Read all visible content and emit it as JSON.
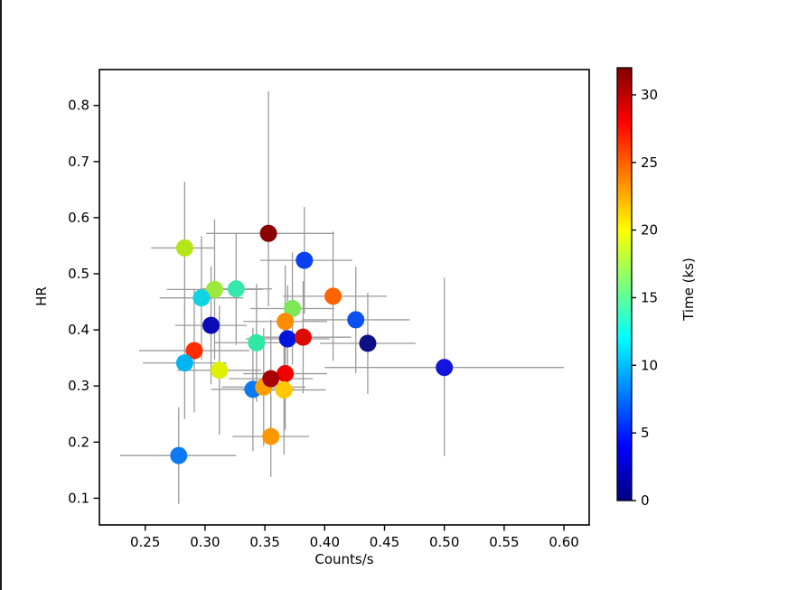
{
  "chart_data": {
    "type": "scatter",
    "title": "",
    "xlabel": "Counts/s",
    "ylabel": "HR",
    "xlim": [
      0.211,
      0.621
    ],
    "ylim": [
      0.052,
      0.864
    ],
    "grid": false,
    "xticks": [
      "0.25",
      "0.30",
      "0.35",
      "0.40",
      "0.45",
      "0.50",
      "0.55",
      "0.60"
    ],
    "xtick_values": [
      0.25,
      0.3,
      0.35,
      0.4,
      0.45,
      0.5,
      0.55,
      0.6
    ],
    "yticks": [
      "0.1",
      "0.2",
      "0.3",
      "0.4",
      "0.5",
      "0.6",
      "0.7",
      "0.8"
    ],
    "ytick_values": [
      0.1,
      0.2,
      0.3,
      0.4,
      0.5,
      0.6,
      0.7,
      0.8
    ],
    "colorbar": {
      "label": "Time (ks)",
      "min": 0,
      "max": 32,
      "ticks": [
        "0",
        "5",
        "10",
        "15",
        "20",
        "25",
        "30"
      ],
      "tick_values": [
        0,
        5,
        10,
        15,
        20,
        25,
        30
      ],
      "colormap": "jet",
      "gradient_stops": [
        {
          "offset": 0.0,
          "color": "#000080"
        },
        {
          "offset": 0.125,
          "color": "#0000ff"
        },
        {
          "offset": 0.375,
          "color": "#00ffff"
        },
        {
          "offset": 0.5,
          "color": "#7cff79"
        },
        {
          "offset": 0.625,
          "color": "#ffff00"
        },
        {
          "offset": 0.875,
          "color": "#ff0000"
        },
        {
          "offset": 1.0,
          "color": "#800000"
        }
      ]
    },
    "style": {
      "marker_color_source": "time",
      "marker_radius_px": 9.5,
      "errorbar_color": "#9b9b9b",
      "axes_color": "#000000",
      "background": "#ffffff"
    },
    "points": [
      {
        "x": 0.353,
        "y": 0.572,
        "time": 32,
        "color": "#8b0000",
        "ex": [
          0.052,
          0.055
        ],
        "ey": [
          0.13,
          0.253
        ]
      },
      {
        "x": 0.283,
        "y": 0.546,
        "time": 19,
        "color": "#b2e619",
        "ex": [
          0.028,
          0.025
        ],
        "ey": [
          0.12,
          0.118
        ]
      },
      {
        "x": 0.383,
        "y": 0.524,
        "time": 5,
        "color": "#0842f0",
        "ex": [
          0.037,
          0.04
        ],
        "ey": [
          0.095,
          0.095
        ]
      },
      {
        "x": 0.308,
        "y": 0.472,
        "time": 18,
        "color": "#9de83c",
        "ex": [
          0.04,
          0.04
        ],
        "ey": [
          0.125,
          0.125
        ]
      },
      {
        "x": 0.326,
        "y": 0.473,
        "time": 14,
        "color": "#35e8ad",
        "ex": [
          0.03,
          0.03
        ],
        "ey": [
          0.1,
          0.1
        ]
      },
      {
        "x": 0.297,
        "y": 0.457,
        "time": 11,
        "color": "#11d4e2",
        "ex": [
          0.035,
          0.035
        ],
        "ey": [
          0.11,
          0.11
        ]
      },
      {
        "x": 0.407,
        "y": 0.46,
        "time": 26,
        "color": "#ff6400",
        "ex": [
          0.042,
          0.045
        ],
        "ey": [
          0.115,
          0.115
        ]
      },
      {
        "x": 0.373,
        "y": 0.438,
        "time": 16,
        "color": "#7ce857",
        "ex": [
          0.035,
          0.035
        ],
        "ey": [
          0.1,
          0.1
        ]
      },
      {
        "x": 0.426,
        "y": 0.418,
        "time": 5,
        "color": "#0c50f0",
        "ex": [
          0.045,
          0.045
        ],
        "ey": [
          0.095,
          0.095
        ]
      },
      {
        "x": 0.305,
        "y": 0.408,
        "time": 2,
        "color": "#0a0ab8",
        "ex": [
          0.03,
          0.03
        ],
        "ey": [
          0.105,
          0.105
        ]
      },
      {
        "x": 0.367,
        "y": 0.415,
        "time": 24,
        "color": "#ff8c00",
        "ex": [
          0.035,
          0.035
        ],
        "ey": [
          0.1,
          0.1
        ]
      },
      {
        "x": 0.369,
        "y": 0.384,
        "time": 3,
        "color": "#0016dc",
        "ex": [
          0.035,
          0.035
        ],
        "ey": [
          0.095,
          0.095
        ]
      },
      {
        "x": 0.382,
        "y": 0.387,
        "time": 29,
        "color": "#dc0a00",
        "ex": [
          0.04,
          0.04
        ],
        "ey": [
          0.1,
          0.1
        ]
      },
      {
        "x": 0.343,
        "y": 0.377,
        "time": 13,
        "color": "#2ee8a4",
        "ex": [
          0.035,
          0.035
        ],
        "ey": [
          0.105,
          0.105
        ]
      },
      {
        "x": 0.291,
        "y": 0.363,
        "time": 27,
        "color": "#ff2d00",
        "ex": [
          0.046,
          0.046
        ],
        "ey": [
          0.11,
          0.11
        ]
      },
      {
        "x": 0.283,
        "y": 0.341,
        "time": 10,
        "color": "#00b4f0",
        "ex": [
          0.035,
          0.035
        ],
        "ey": [
          0.1,
          0.1
        ]
      },
      {
        "x": 0.312,
        "y": 0.328,
        "time": 21,
        "color": "#e0f000",
        "ex": [
          0.035,
          0.035
        ],
        "ey": [
          0.115,
          0.115
        ]
      },
      {
        "x": 0.34,
        "y": 0.294,
        "time": 7,
        "color": "#0e7af2",
        "ex": [
          0.035,
          0.035
        ],
        "ey": [
          0.11,
          0.11
        ]
      },
      {
        "x": 0.349,
        "y": 0.298,
        "time": 23,
        "color": "#ffa000",
        "ex": [
          0.035,
          0.035
        ],
        "ey": [
          0.105,
          0.105
        ]
      },
      {
        "x": 0.367,
        "y": 0.322,
        "time": 28,
        "color": "#f00000",
        "ex": [
          0.035,
          0.035
        ],
        "ey": [
          0.1,
          0.1
        ]
      },
      {
        "x": 0.366,
        "y": 0.293,
        "time": 22,
        "color": "#ffc800",
        "ex": [
          0.035,
          0.035
        ],
        "ey": [
          0.115,
          0.115
        ]
      },
      {
        "x": 0.355,
        "y": 0.313,
        "time": 31,
        "color": "#a80000",
        "ex": [
          0.035,
          0.035
        ],
        "ey": [
          0.105,
          0.105
        ]
      },
      {
        "x": 0.355,
        "y": 0.21,
        "time": 23,
        "color": "#ff9800",
        "ex": [
          0.032,
          0.032
        ],
        "ey": [
          0.072,
          0.072
        ]
      },
      {
        "x": 0.278,
        "y": 0.176,
        "time": 7,
        "color": "#0e7af2",
        "ex": [
          0.049,
          0.048
        ],
        "ey": [
          0.086,
          0.086
        ]
      },
      {
        "x": 0.436,
        "y": 0.376,
        "time": 1,
        "color": "#101086",
        "ex": [
          0.04,
          0.04
        ],
        "ey": [
          0.09,
          0.09
        ]
      },
      {
        "x": 0.5,
        "y": 0.333,
        "time": 4,
        "color": "#1414dc",
        "ex": [
          0.1,
          0.1
        ],
        "ey": [
          0.158,
          0.16
        ]
      }
    ]
  }
}
